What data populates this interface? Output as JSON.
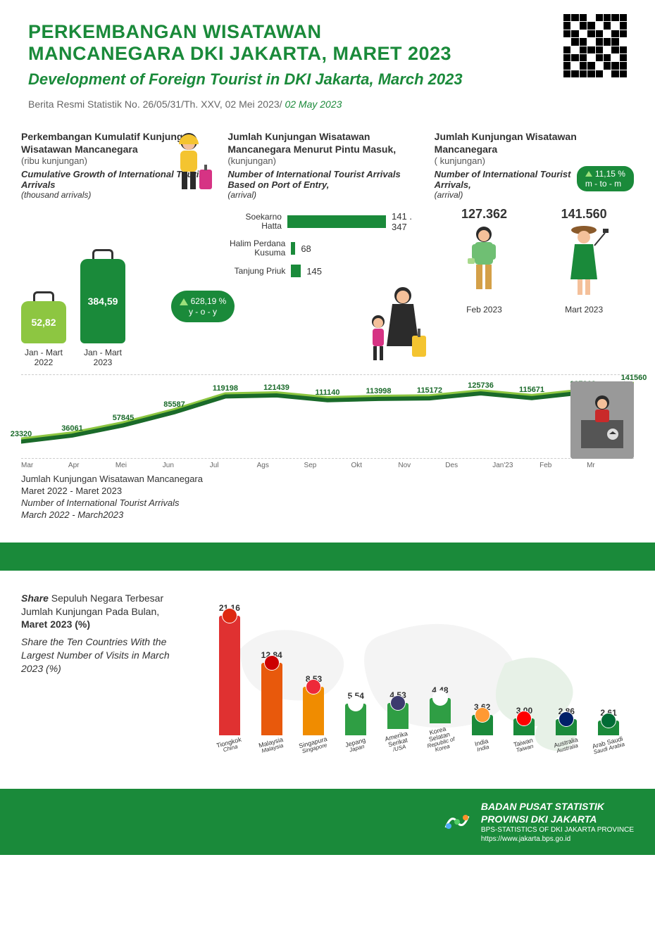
{
  "header": {
    "title_id_l1": "PERKEMBANGAN WISATAWAN",
    "title_id_l2": "MANCANEGARA DKI JAKARTA, MARET 2023",
    "title_en": "Development of Foreign Tourist in DKI Jakarta, March 2023",
    "brs_id": "Berita Resmi Statistik No. 26/05/31/Th. XXV, 02 Mei 2023/",
    "brs_en": " 02  May 2023"
  },
  "colors": {
    "brand_green": "#1a8a3a",
    "light_green": "#8dc641",
    "bar_light": "#9be07a",
    "text_dark": "#333333",
    "gray": "#888888"
  },
  "cumulative": {
    "title_id": "Perkembangan Kumulatif Kunjungan Wisatawan Mancanegara",
    "unit_id": "(ribu kunjungan)",
    "title_en": "Cumulative Growth of International Tourist Arrivals",
    "unit_en": "(thousand arrivals)",
    "bars": [
      {
        "label": "Jan - Mart 2022",
        "value": "52,82",
        "height": 60,
        "color": "#8dc641"
      },
      {
        "label": "Jan - Mart 2023",
        "value": "384,59",
        "height": 120,
        "color": "#1a8a3a"
      }
    ],
    "yoy_pct": "628,19 %",
    "yoy_label": "y - o - y"
  },
  "ports": {
    "title_id": "Jumlah Kunjungan Wisatawan Mancanegara Menurut Pintu Masuk,",
    "unit_id": "(kunjungan)",
    "title_en": "Number of International Tourist Arrivals Based on Port of Entry,",
    "unit_en": "(arrival)",
    "items": [
      {
        "name": "Soekarno Hatta",
        "value": "141 . 347",
        "width": 150
      },
      {
        "name": "Halim Perdana Kusuma",
        "value": "68",
        "width": 6
      },
      {
        "name": "Tanjung  Priuk",
        "value": "145",
        "width": 14
      }
    ]
  },
  "mtm": {
    "title_id": "Jumlah Kunjungan Wisatawan Mancanegara",
    "unit_id": "( kunjungan)",
    "title_en": "Number of International Tourist Arrivals,",
    "unit_en": "(arrival)",
    "pct": "11,15 %",
    "pct_label": "m - to - m",
    "feb": {
      "value": "127.362",
      "label": "Feb 2023"
    },
    "mar": {
      "value": "141.560",
      "label": "Mart 2023"
    }
  },
  "line": {
    "months": [
      "Mar",
      "Apr",
      "Mei",
      "Jun",
      "Jul",
      "Ags",
      "Sep",
      "Okt",
      "Nov",
      "Des",
      "Jan'23",
      "Feb",
      "Mr"
    ],
    "values": [
      23320,
      36061,
      57845,
      85587,
      119198,
      121439,
      111140,
      113998,
      115172,
      125736,
      115671,
      127362,
      141560
    ],
    "labels": [
      "23320",
      "36061",
      "57845",
      "85587",
      "119198",
      "121439",
      "111140",
      "113998",
      "115172",
      "125736",
      "115671",
      "127362",
      "141560"
    ],
    "ylim": [
      0,
      150000
    ],
    "line_color_dark": "#1a6a2a",
    "line_color_light": "#8dc641",
    "caption_id_l1": "Jumlah Kunjungan Wisatawan Mancanegara",
    "caption_id_l2": "Maret 2022 - Maret 2023",
    "caption_en_l1": "Number of International Tourist Arrivals",
    "caption_en_l2": "March 2022 - March2023"
  },
  "share": {
    "lead_word": "Share",
    "text_id_l1": " Sepuluh Negara Terbesar Jumlah Kunjungan Pada Bulan,",
    "text_id_bold": "Maret 2023  (%)",
    "text_en": "Share the Ten Countries With the Largest Number of Visits in March 2023 (%)",
    "countries": [
      {
        "name_id": "Tiongkok",
        "name_en": "China",
        "value": 21.16,
        "label": "21,16",
        "color": "#e03131",
        "flag": "#de2910"
      },
      {
        "name_id": "Malaysia",
        "name_en": "Malaysia",
        "value": 12.84,
        "label": "12,84",
        "color": "#e8590c",
        "flag": "#cc0001"
      },
      {
        "name_id": "Singapura",
        "name_en": "Singapore",
        "value": 8.53,
        "label": "8,53",
        "color": "#f08c00",
        "flag": "#ed2939"
      },
      {
        "name_id": "Jepang",
        "name_en": "Japan",
        "value": 5.54,
        "label": "5,54",
        "color": "#2f9e44",
        "flag": "#ffffff"
      },
      {
        "name_id": "Amerika Serikat",
        "name_en": "/USA",
        "value": 4.53,
        "label": "4,53",
        "color": "#2f9e44",
        "flag": "#3c3b6e"
      },
      {
        "name_id": "Korea Selatan",
        "name_en": "Republic of Korea",
        "value": 4.48,
        "label": "4,48",
        "color": "#2f9e44",
        "flag": "#ffffff"
      },
      {
        "name_id": "India",
        "name_en": "India",
        "value": 3.62,
        "label": "3,62",
        "color": "#1a8a3a",
        "flag": "#ff9933"
      },
      {
        "name_id": "Taiwan",
        "name_en": "Taiwan",
        "value": 3.0,
        "label": "3,00",
        "color": "#1a8a3a",
        "flag": "#fe0000"
      },
      {
        "name_id": "Australia",
        "name_en": "Australia",
        "value": 2.86,
        "label": "2,86",
        "color": "#1a8a3a",
        "flag": "#012169"
      },
      {
        "name_id": "Arab Saudi",
        "name_en": "Saudi Arabia",
        "value": 2.61,
        "label": "2,61",
        "color": "#1a8a3a",
        "flag": "#006c35"
      }
    ],
    "max_value": 21.16,
    "max_bar_height": 170
  },
  "footer": {
    "org_l1": "BADAN PUSAT STATISTIK",
    "org_l2": "PROVINSI DKI JAKARTA",
    "org_en": "BPS-STATISTICS OF DKI JAKARTA PROVINCE",
    "url": "https://www.jakarta.bps.go.id"
  }
}
